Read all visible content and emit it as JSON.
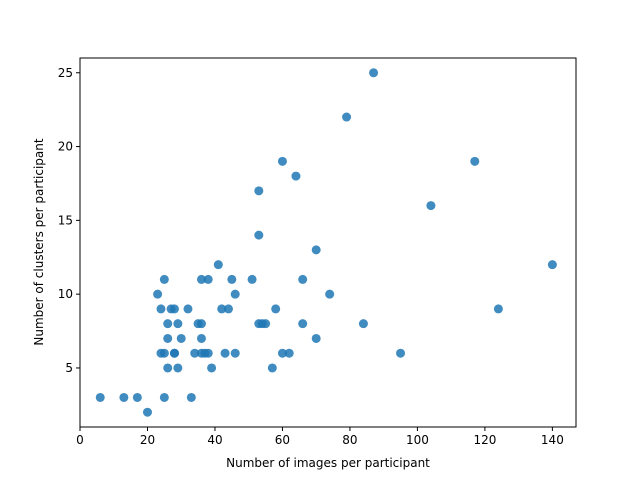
{
  "chart_data": {
    "type": "scatter",
    "title": "",
    "xlabel": "Number of images per participant",
    "ylabel": "Number of clusters per participant",
    "xlim": [
      0,
      147
    ],
    "ylim": [
      1,
      26
    ],
    "xticks": [
      0,
      20,
      40,
      60,
      80,
      100,
      120,
      140
    ],
    "yticks": [
      5,
      10,
      15,
      20,
      25
    ],
    "grid": false,
    "marker_color": "#1f77b4",
    "series": [
      {
        "points": [
          [
            6,
            3
          ],
          [
            13,
            3
          ],
          [
            17,
            3
          ],
          [
            20,
            2
          ],
          [
            23,
            10
          ],
          [
            24,
            9
          ],
          [
            24,
            6
          ],
          [
            25,
            11
          ],
          [
            25,
            6
          ],
          [
            25,
            3
          ],
          [
            26,
            8
          ],
          [
            26,
            7
          ],
          [
            26,
            5
          ],
          [
            27,
            9
          ],
          [
            28,
            9
          ],
          [
            28,
            6
          ],
          [
            28,
            6
          ],
          [
            29,
            8
          ],
          [
            29,
            5
          ],
          [
            30,
            7
          ],
          [
            32,
            9
          ],
          [
            33,
            3
          ],
          [
            34,
            6
          ],
          [
            35,
            8
          ],
          [
            36,
            8
          ],
          [
            36,
            11
          ],
          [
            36,
            7
          ],
          [
            36,
            6
          ],
          [
            37,
            6
          ],
          [
            38,
            11
          ],
          [
            38,
            6
          ],
          [
            39,
            5
          ],
          [
            41,
            12
          ],
          [
            42,
            9
          ],
          [
            43,
            6
          ],
          [
            44,
            9
          ],
          [
            45,
            11
          ],
          [
            46,
            10
          ],
          [
            46,
            6
          ],
          [
            51,
            11
          ],
          [
            53,
            17
          ],
          [
            53,
            14
          ],
          [
            53,
            8
          ],
          [
            54,
            8
          ],
          [
            55,
            8
          ],
          [
            57,
            5
          ],
          [
            58,
            9
          ],
          [
            60,
            19
          ],
          [
            60,
            6
          ],
          [
            62,
            6
          ],
          [
            64,
            18
          ],
          [
            66,
            11
          ],
          [
            66,
            8
          ],
          [
            70,
            13
          ],
          [
            70,
            7
          ],
          [
            74,
            10
          ],
          [
            79,
            22
          ],
          [
            84,
            8
          ],
          [
            87,
            25
          ],
          [
            95,
            6
          ],
          [
            104,
            16
          ],
          [
            117,
            19
          ],
          [
            124,
            9
          ],
          [
            140,
            12
          ]
        ]
      }
    ]
  }
}
